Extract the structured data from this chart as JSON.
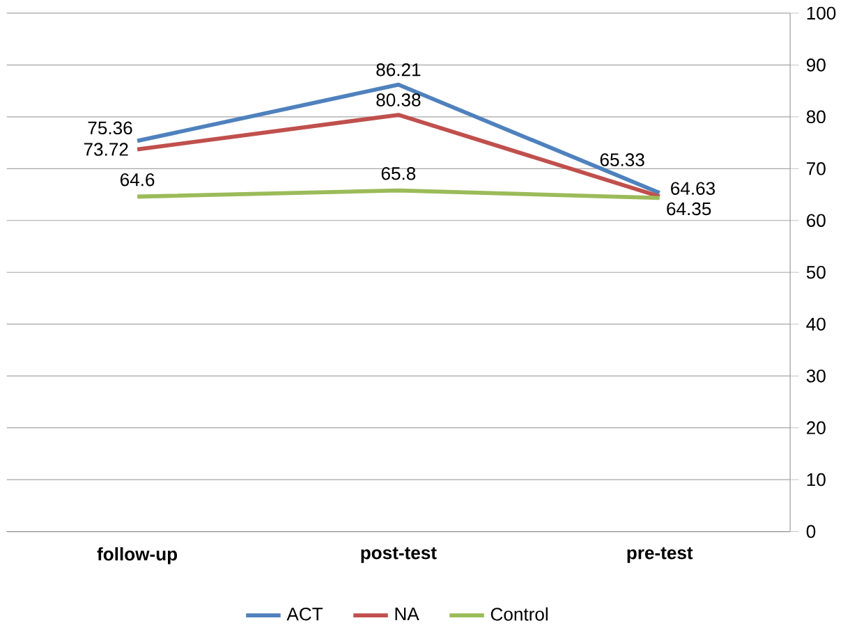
{
  "chart_data": {
    "type": "line",
    "categories": [
      "follow-up",
      "post-test",
      "pre-test"
    ],
    "series": [
      {
        "name": "ACT",
        "color": "#4f81bd",
        "values": [
          75.36,
          86.21,
          65.33
        ]
      },
      {
        "name": "NA",
        "color": "#c0504d",
        "values": [
          73.72,
          80.38,
          64.63
        ]
      },
      {
        "name": "Control",
        "color": "#9bbb59",
        "values": [
          64.6,
          65.8,
          64.35
        ]
      }
    ],
    "ylim": [
      0,
      100
    ],
    "yticks": [
      0,
      10,
      20,
      30,
      40,
      50,
      60,
      70,
      80,
      90,
      100
    ],
    "grid": "y",
    "legend": "bottom",
    "data_labels": true,
    "marker": "none",
    "line_style": "solid"
  }
}
